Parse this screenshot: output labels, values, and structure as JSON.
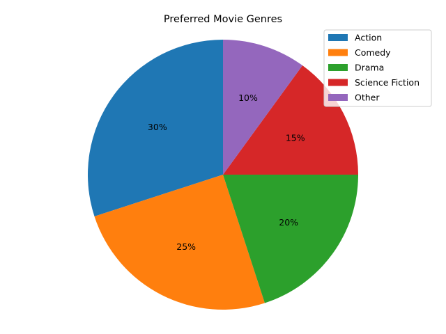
{
  "chart_data": {
    "type": "pie",
    "title": "Preferred Movie Genres",
    "categories": [
      "Action",
      "Comedy",
      "Drama",
      "Science Fiction",
      "Other"
    ],
    "values": [
      30,
      25,
      20,
      15,
      10
    ],
    "labels": [
      "30%",
      "25%",
      "20%",
      "15%",
      "10%"
    ],
    "colors": [
      "#1f77b4",
      "#ff7f0e",
      "#2ca02c",
      "#d62728",
      "#9467bd"
    ],
    "start_angle_deg": 90,
    "direction": "counterclockwise",
    "legend_placement": "top-right"
  }
}
